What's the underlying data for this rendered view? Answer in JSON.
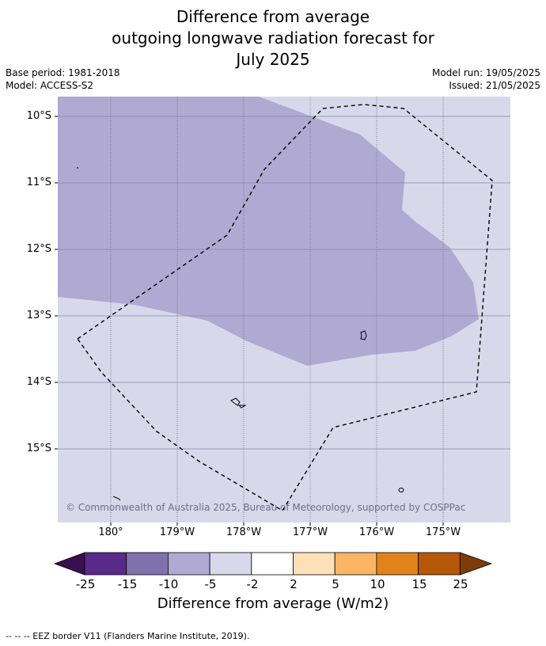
{
  "title_lines": [
    "Difference from average",
    "outgoing longwave radiation forecast for",
    "July 2025"
  ],
  "meta_left": [
    "Base period: 1981-2018",
    "Model: ACCESS-S2"
  ],
  "meta_right": [
    "Model run: 19/05/2025",
    "Issued: 21/05/2025"
  ],
  "lat_labels": [
    "10°S",
    "11°S",
    "12°S",
    "13°S",
    "14°S",
    "15°S"
  ],
  "lon_labels": [
    "180°",
    "179°W",
    "178°W",
    "177°W",
    "176°W",
    "175°W"
  ],
  "copyright": "© Commonwealth of Australia 2025, Bureau of Meteorology, supported by COSPPac",
  "colorbar": {
    "ticks": [
      "-25",
      "-15",
      "-10",
      "-5",
      "-2",
      "2",
      "5",
      "10",
      "15",
      "25"
    ],
    "colors": [
      "#3b0f4f",
      "#5a2a8a",
      "#7f72ac",
      "#b0a9d2",
      "#d8d8ea",
      "#ffffff",
      "#fde0b7",
      "#fbb565",
      "#e1831b",
      "#b55807",
      "#7f3b08"
    ],
    "title": "Difference from average (W/m2)"
  },
  "footer": "-- -- -- EEZ border V11 (Flanders Marine Institute, 2019).",
  "map": {
    "ocean_color": "#d8d8ea",
    "anomaly_color": "#b0a9d2"
  }
}
